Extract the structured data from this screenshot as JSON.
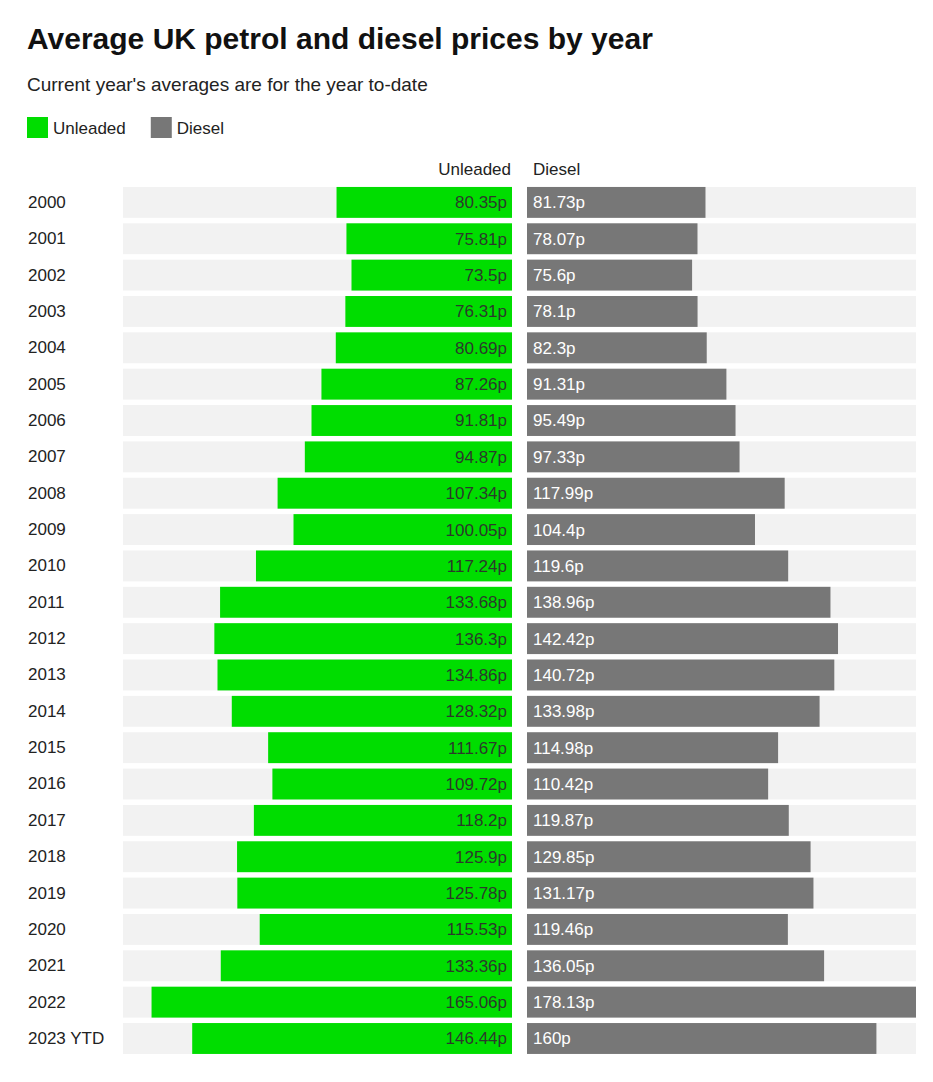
{
  "chart_data": {
    "type": "bar",
    "orientation": "horizontal",
    "title": "Average UK petrol and diesel prices by year",
    "subtitle": "Current year's averages are for the year to-date",
    "categories": [
      "2000",
      "2001",
      "2002",
      "2003",
      "2004",
      "2005",
      "2006",
      "2007",
      "2008",
      "2009",
      "2010",
      "2011",
      "2012",
      "2013",
      "2014",
      "2015",
      "2016",
      "2017",
      "2018",
      "2019",
      "2020",
      "2021",
      "2022",
      "2023 YTD"
    ],
    "series": [
      {
        "name": "Unleaded",
        "color": "#00dd00",
        "values": [
          80.35,
          75.81,
          73.5,
          76.31,
          80.69,
          87.26,
          91.81,
          94.87,
          107.34,
          100.05,
          117.24,
          133.68,
          136.3,
          134.86,
          128.32,
          111.67,
          109.72,
          118.2,
          125.9,
          125.78,
          115.53,
          133.36,
          165.06,
          146.44
        ],
        "value_labels": [
          "80.35p",
          "75.81p",
          "73.5p",
          "76.31p",
          "80.69p",
          "87.26p",
          "91.81p",
          "94.87p",
          "107.34p",
          "100.05p",
          "117.24p",
          "133.68p",
          "136.3p",
          "134.86p",
          "128.32p",
          "111.67p",
          "109.72p",
          "118.2p",
          "125.9p",
          "125.78p",
          "115.53p",
          "133.36p",
          "165.06p",
          "146.44p"
        ]
      },
      {
        "name": "Diesel",
        "color": "#777777",
        "values": [
          81.73,
          78.07,
          75.6,
          78.1,
          82.3,
          91.31,
          95.49,
          97.33,
          117.99,
          104.4,
          119.6,
          138.96,
          142.42,
          140.72,
          133.98,
          114.98,
          110.42,
          119.87,
          129.85,
          131.17,
          119.46,
          136.05,
          178.13,
          160
        ],
        "value_labels": [
          "81.73p",
          "78.07p",
          "75.6p",
          "78.1p",
          "82.3p",
          "91.31p",
          "95.49p",
          "97.33p",
          "117.99p",
          "104.4p",
          "119.6p",
          "138.96p",
          "142.42p",
          "140.72p",
          "133.98p",
          "114.98p",
          "110.42p",
          "119.87p",
          "129.85p",
          "131.17p",
          "119.46p",
          "136.05p",
          "178.13p",
          "160p"
        ]
      }
    ],
    "xlim": [
      0,
      178.13
    ],
    "data_labels": true,
    "legend": "top-left",
    "tick_labels": false
  }
}
